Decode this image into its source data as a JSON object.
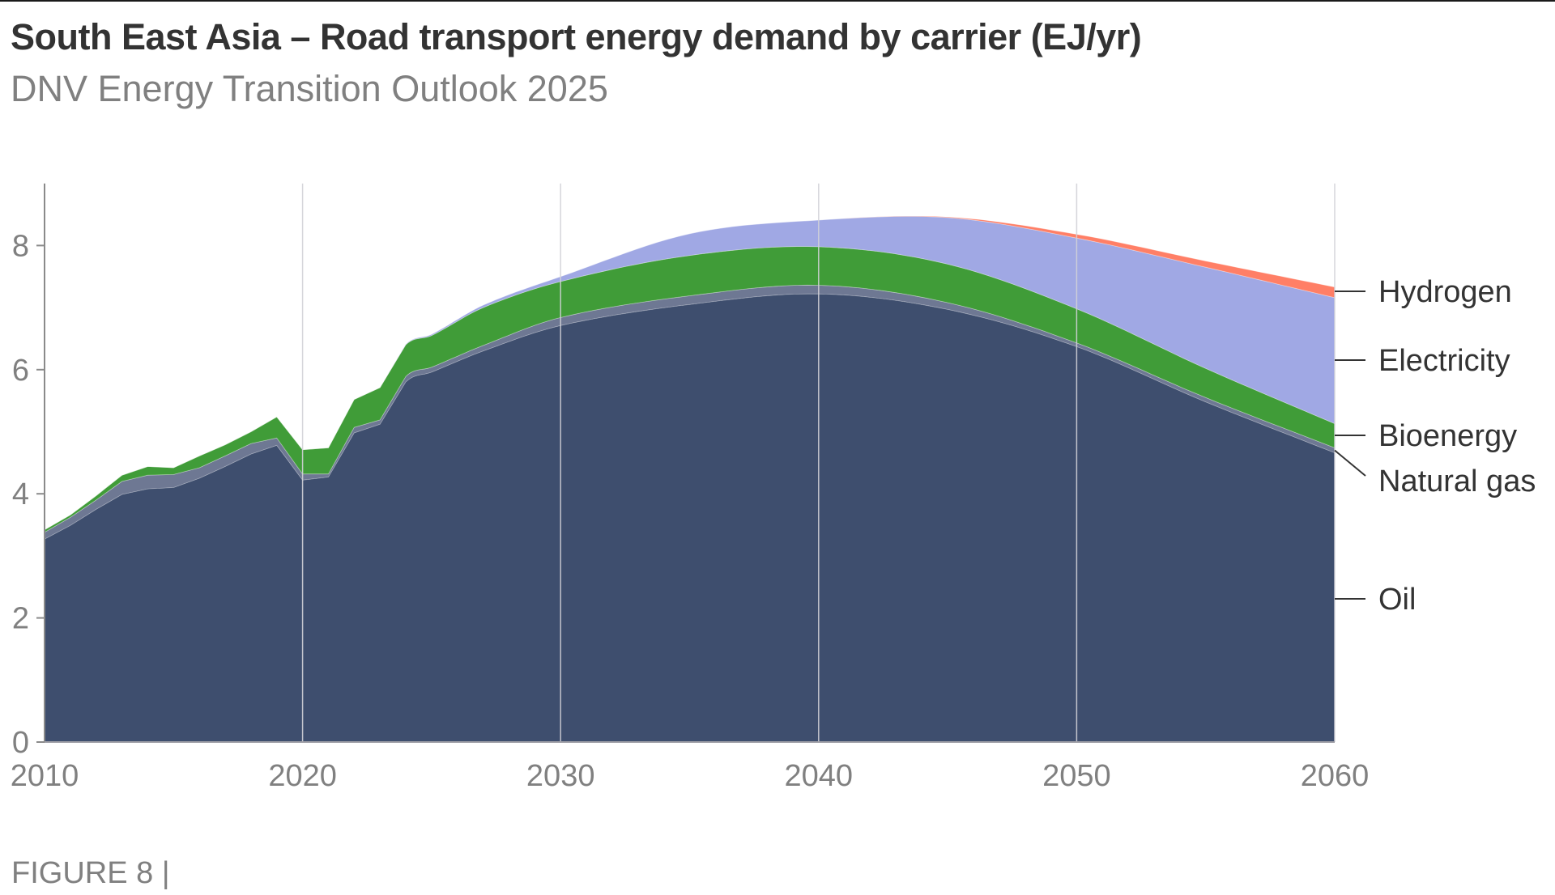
{
  "header": {
    "title": "South East Asia – Road transport energy demand by carrier (EJ/yr)",
    "subtitle": "DNV Energy Transition Outlook 2025"
  },
  "footer": {
    "figure_label": "FIGURE 8 |"
  },
  "chart_data": {
    "type": "area",
    "stacked": true,
    "title": "South East Asia – Road transport energy demand by carrier (EJ/yr)",
    "subtitle": "DNV Energy Transition Outlook 2025",
    "xlabel": "",
    "ylabel": "",
    "xlim": [
      2010,
      2060
    ],
    "ylim": [
      0,
      9
    ],
    "x_ticks": [
      2010,
      2020,
      2030,
      2040,
      2050,
      2060
    ],
    "x_tick_labels": [
      "2010",
      "2020",
      "2030",
      "2040",
      "2050",
      "2060"
    ],
    "y_ticks": [
      0,
      2,
      4,
      6,
      8
    ],
    "y_tick_labels": [
      "0",
      "2",
      "4",
      "6",
      "8"
    ],
    "grid": "vertical lines at decade ticks",
    "legend": "right (direct labels at 2060)",
    "x": [
      2010,
      2011,
      2012,
      2013,
      2014,
      2015,
      2016,
      2017,
      2018,
      2019,
      2020,
      2021,
      2022,
      2023,
      2024,
      2025,
      2027,
      2030,
      2035,
      2040,
      2045,
      2050,
      2055,
      2060
    ],
    "smooth_from": 2024,
    "series": [
      {
        "name": "Oil",
        "color": "#3E4E6E",
        "values": [
          3.27,
          3.49,
          3.75,
          3.99,
          4.08,
          4.1,
          4.25,
          4.44,
          4.64,
          4.78,
          4.22,
          4.27,
          4.98,
          5.12,
          5.8,
          5.96,
          6.3,
          6.71,
          7.05,
          7.22,
          6.97,
          6.37,
          5.48,
          4.66
        ]
      },
      {
        "name": "Natural gas",
        "color": "#6E7893",
        "values": [
          0.11,
          0.13,
          0.15,
          0.21,
          0.22,
          0.21,
          0.17,
          0.17,
          0.17,
          0.12,
          0.1,
          0.05,
          0.09,
          0.07,
          0.09,
          0.08,
          0.09,
          0.13,
          0.14,
          0.14,
          0.11,
          0.06,
          0.07,
          0.08
        ]
      },
      {
        "name": "Bioenergy",
        "color": "#409C38",
        "values": [
          0.04,
          0.04,
          0.07,
          0.1,
          0.14,
          0.11,
          0.19,
          0.18,
          0.19,
          0.34,
          0.39,
          0.42,
          0.45,
          0.52,
          0.51,
          0.51,
          0.61,
          0.58,
          0.65,
          0.62,
          0.62,
          0.55,
          0.47,
          0.39
        ]
      },
      {
        "name": "Electricity",
        "color": "#A0A8E4",
        "values": [
          0,
          0,
          0,
          0,
          0,
          0,
          0,
          0,
          0,
          0,
          0,
          0,
          0,
          0,
          0.01,
          0.02,
          0.04,
          0.08,
          0.35,
          0.43,
          0.75,
          1.14,
          1.63,
          2.03
        ]
      },
      {
        "name": "Hydrogen",
        "color": "#FF7F66",
        "values": [
          0,
          0,
          0,
          0,
          0,
          0,
          0,
          0,
          0,
          0,
          0,
          0,
          0,
          0,
          0,
          0,
          0,
          0,
          0,
          0,
          0.01,
          0.06,
          0.1,
          0.17
        ]
      }
    ],
    "labels": [
      {
        "series": "Hydrogen",
        "text": "Hydrogen"
      },
      {
        "series": "Electricity",
        "text": "Electricity"
      },
      {
        "series": "Bioenergy",
        "text": "Bioenergy"
      },
      {
        "series": "Natural gas",
        "text": "Natural gas"
      },
      {
        "series": "Oil",
        "text": "Oil"
      }
    ]
  }
}
